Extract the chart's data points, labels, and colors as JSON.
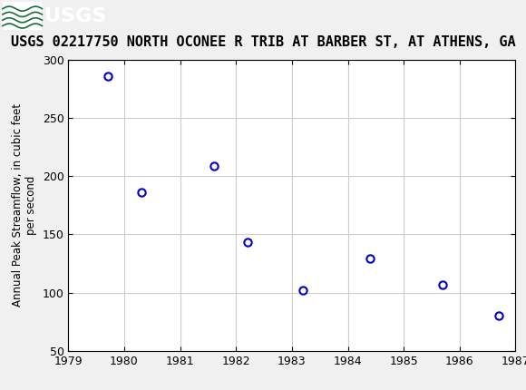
{
  "title": "USGS 02217750 NORTH OCONEE R TRIB AT BARBER ST, AT ATHENS, GA",
  "ylabel": "Annual Peak Streamflow, in cubic feet\nper second",
  "x_data": [
    1979.7,
    1980.3,
    1981.6,
    1982.2,
    1983.2,
    1984.4,
    1985.7,
    1986.7
  ],
  "y_data": [
    286,
    186,
    209,
    143,
    102,
    129,
    107,
    80
  ],
  "xlim": [
    1979,
    1987
  ],
  "ylim": [
    50,
    300
  ],
  "xticks": [
    1979,
    1980,
    1981,
    1982,
    1983,
    1984,
    1985,
    1986,
    1987
  ],
  "yticks": [
    50,
    100,
    150,
    200,
    250,
    300
  ],
  "marker_color": "#0000cc",
  "marker_style": "o",
  "marker_size": 6,
  "marker_facecolor": "white",
  "grid_color": "#cccccc",
  "header_bg_color": "#1a6b3c",
  "title_fontsize": 11,
  "axis_label_fontsize": 8.5,
  "tick_fontsize": 9,
  "background_color": "#f0f0f0",
  "plot_bg_color": "#ffffff",
  "usgs_text": "USGS",
  "usgs_text_color": "#ffffff",
  "header_text_fontsize": 16
}
